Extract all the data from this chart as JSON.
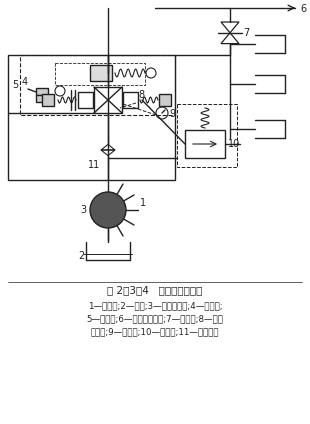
{
  "title": "图 2－3－4   液压系统示意图",
  "caption_lines": [
    "1—电动机;2—油箱;3—单级叶片泵;4—单向阀;",
    "5—支承阀;6—通往工作油缸;7—截止阀;8—电液",
    "换向阀;9—压力表;10—溢流阀;11—压力开关"
  ],
  "bg_color": "#ffffff",
  "line_color": "#222222",
  "fig_width": 3.1,
  "fig_height": 4.24,
  "dpi": 100
}
